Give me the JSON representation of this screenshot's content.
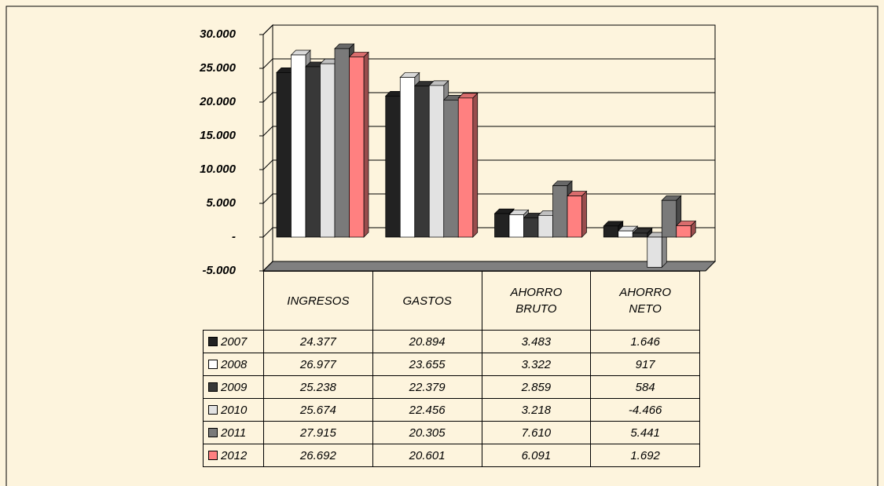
{
  "chart_data": {
    "type": "bar",
    "categories": [
      "INGRESOS",
      "GASTOS",
      "AHORRO BRUTO",
      "AHORRO NETO"
    ],
    "series": [
      {
        "name": "2007",
        "color": "#222222",
        "values": [
          24377,
          20894,
          3483,
          1646
        ],
        "value_labels": [
          "24.377",
          "20.894",
          "3.483",
          "1.646"
        ]
      },
      {
        "name": "2008",
        "color": "#ffffff",
        "values": [
          26977,
          23655,
          3322,
          917
        ],
        "value_labels": [
          "26.977",
          "23.655",
          "3.322",
          "917"
        ]
      },
      {
        "name": "2009",
        "color": "#383838",
        "values": [
          25238,
          22379,
          2859,
          584
        ],
        "value_labels": [
          "25.238",
          "22.379",
          "2.859",
          "584"
        ]
      },
      {
        "name": "2010",
        "color": "#e2e2e2",
        "values": [
          25674,
          22456,
          3218,
          -4466
        ],
        "value_labels": [
          "25.674",
          "22.456",
          "3.218",
          "-4.466"
        ]
      },
      {
        "name": "2011",
        "color": "#7a7a7a",
        "values": [
          27915,
          20305,
          7610,
          5441
        ],
        "value_labels": [
          "27.915",
          "20.305",
          "7.610",
          "5.441"
        ]
      },
      {
        "name": "2012",
        "color": "#ff8080",
        "values": [
          26692,
          20601,
          6091,
          1692
        ],
        "value_labels": [
          "26.692",
          "20.601",
          "6.091",
          "1.692"
        ]
      }
    ],
    "ylim": [
      -5000,
      30000
    ],
    "yticks": [
      {
        "value": -5000,
        "label": "-5.000"
      },
      {
        "value": 0,
        "label": "-"
      },
      {
        "value": 5000,
        "label": "5.000"
      },
      {
        "value": 10000,
        "label": "10.000"
      },
      {
        "value": 15000,
        "label": "15.000"
      },
      {
        "value": 20000,
        "label": "20.000"
      },
      {
        "value": 25000,
        "label": "25.000"
      },
      {
        "value": 30000,
        "label": "30.000"
      }
    ],
    "grid": true,
    "legend": "table"
  }
}
